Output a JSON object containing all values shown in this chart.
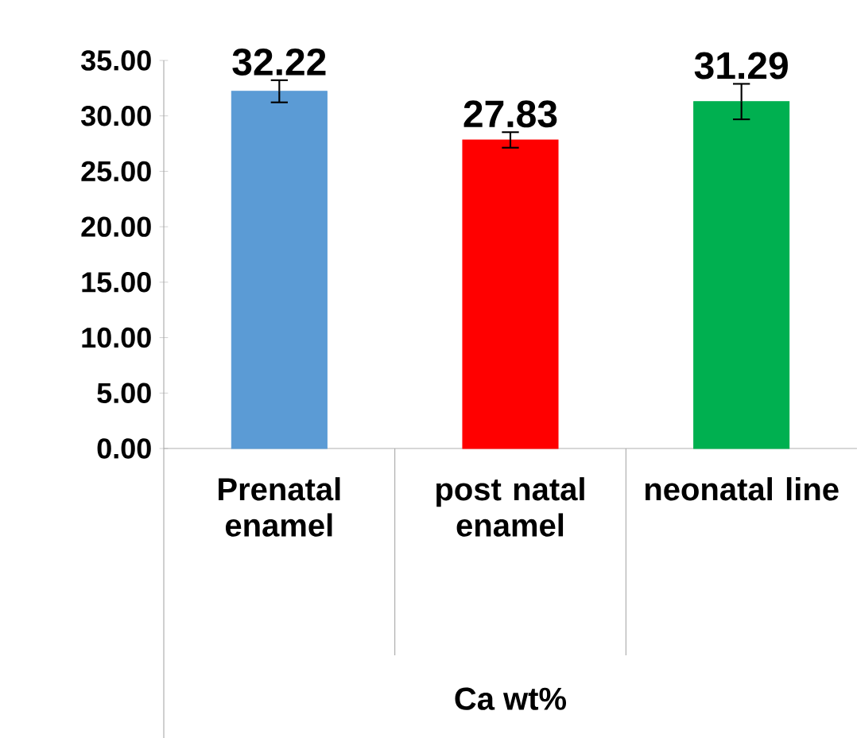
{
  "chart_data": {
    "type": "bar",
    "xlabel": "Ca wt%",
    "categories": [
      "Prenatal enamel",
      "post natal enamel",
      "neonatal line"
    ],
    "values": [
      32.22,
      27.83,
      31.29
    ],
    "colors": [
      "#5b9bd5",
      "#ff0000",
      "#00b050"
    ],
    "errors": [
      1.0,
      0.7,
      1.6
    ],
    "data_labels": true,
    "ylim": [
      0,
      35
    ],
    "yticks": [
      {
        "value": 0,
        "label": "0.00"
      },
      {
        "value": 5,
        "label": "5.00"
      },
      {
        "value": 10,
        "label": "10.00"
      },
      {
        "value": 15,
        "label": "15.00"
      },
      {
        "value": 20,
        "label": "20.00"
      },
      {
        "value": 25,
        "label": "25.00"
      },
      {
        "value": 30,
        "label": "30.00"
      },
      {
        "value": 35,
        "label": "35.00"
      }
    ],
    "grid": false
  }
}
